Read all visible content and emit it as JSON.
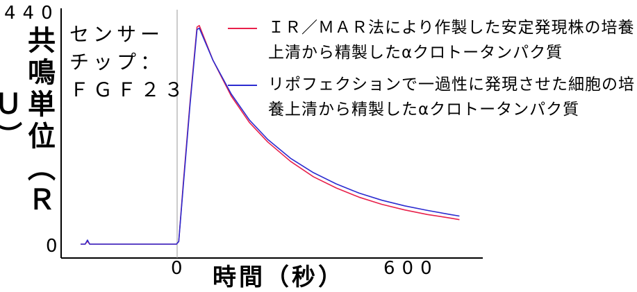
{
  "chart_data": {
    "type": "line",
    "ylabel": "共鳴単位（ＲＵ）",
    "xlabel": "時間（秒）",
    "y_tick_labels": [
      "0",
      "440"
    ],
    "x_tick_labels": [
      "0",
      "600"
    ],
    "xlim": [
      -210,
      630
    ],
    "ylim": [
      0,
      440
    ],
    "annotation": [
      "センサー",
      "チップ：",
      "ＦＧＦ２３"
    ],
    "series": [
      {
        "name": "ＩＲ／ＭＡＲ法により作製した安定発現株の培養上清から精製したαクロトータンパク質",
        "color": "#e8204a",
        "x": [
          -210,
          -200,
          -195,
          -190,
          -100,
          0,
          5,
          15,
          30,
          45,
          50,
          80,
          120,
          160,
          200,
          250,
          300,
          350,
          400,
          450,
          500,
          550,
          600,
          620
        ],
        "y": [
          0,
          0,
          6,
          0,
          0,
          0,
          5,
          120,
          280,
          425,
          428,
          360,
          290,
          238,
          200,
          162,
          132,
          110,
          92,
          78,
          67,
          58,
          51,
          48
        ]
      },
      {
        "name": "リポフェクションで一過性に発現させた細胞の培養上清から精製したαクロトータンパク質",
        "color": "#2b2bd0",
        "x": [
          -210,
          -200,
          -195,
          -190,
          -100,
          0,
          5,
          15,
          30,
          45,
          50,
          80,
          120,
          160,
          200,
          250,
          300,
          350,
          400,
          450,
          500,
          550,
          600,
          620
        ],
        "y": [
          0,
          0,
          8,
          0,
          0,
          0,
          5,
          115,
          275,
          420,
          423,
          360,
          294,
          243,
          205,
          168,
          140,
          118,
          100,
          86,
          75,
          66,
          58,
          55
        ]
      }
    ],
    "grid": false,
    "legend": "top-right"
  }
}
